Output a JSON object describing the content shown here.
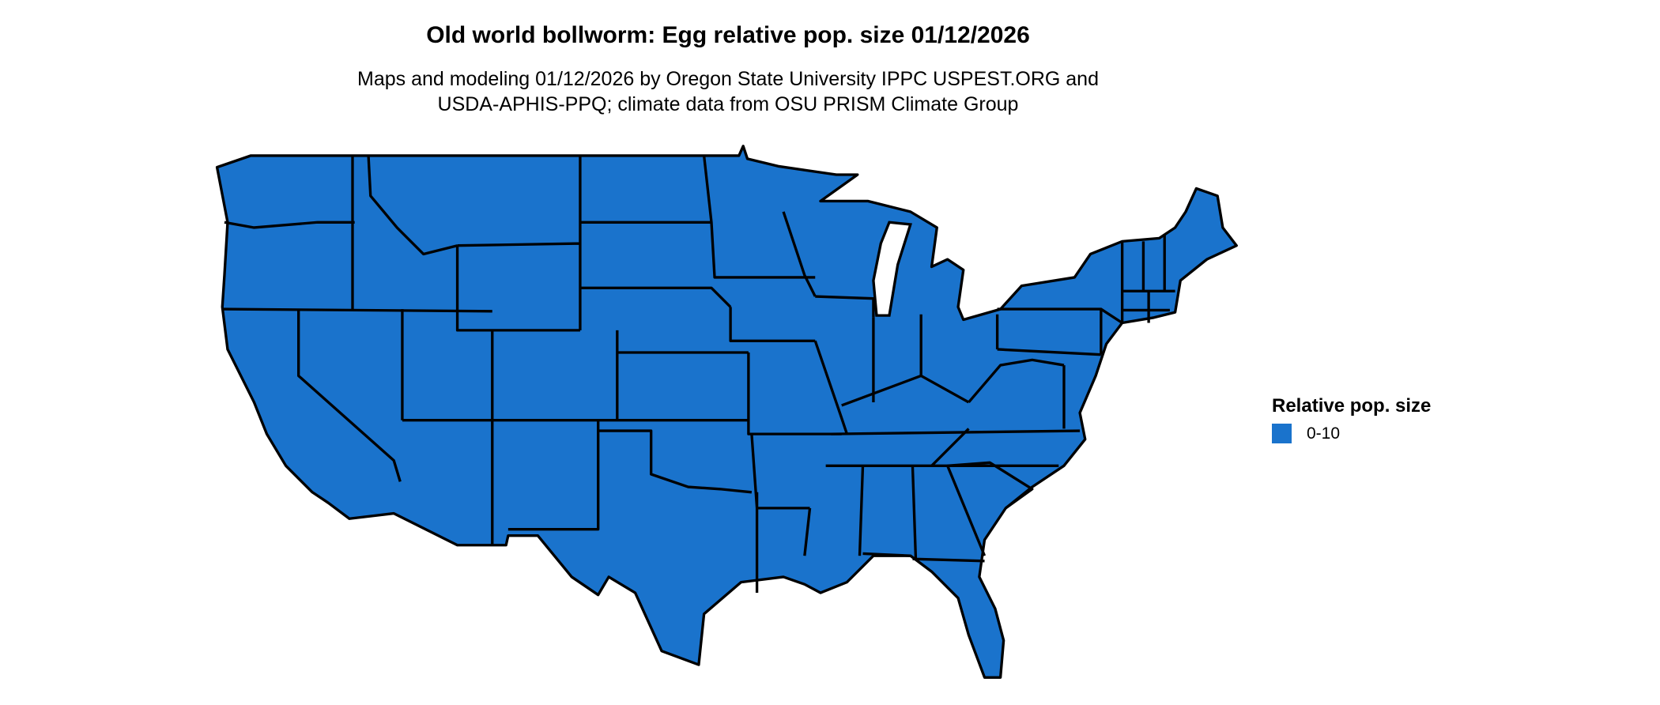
{
  "title": "Old world bollworm: Egg relative pop. size 01/12/2026",
  "subtitle_lines": [
    "Maps and modeling 01/12/2026 by Oregon State University IPPC USPEST.ORG and",
    "USDA-APHIS-PPQ; climate data from OSU PRISM Climate Group"
  ],
  "map": {
    "region": "Contiguous United States",
    "fill_color": "#1a73cc",
    "border_color": "#000000",
    "all_states_category": "0-10"
  },
  "legend": {
    "title": "Relative pop. size",
    "items": [
      {
        "label": "0-10",
        "color": "#1a73cc"
      }
    ]
  }
}
